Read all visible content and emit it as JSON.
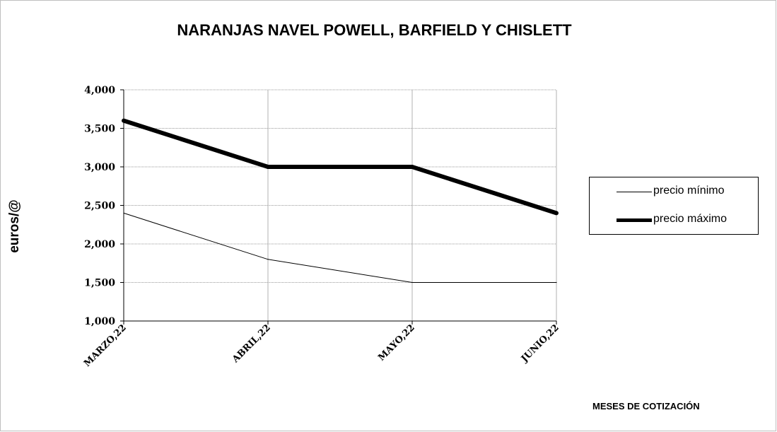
{
  "chart_data": {
    "type": "line",
    "title": "NARANJAS  NAVEL POWELL, BARFIELD Y CHISLETT",
    "ylabel": "euros/@",
    "xlabel": "MESES DE COTIZACIÓN",
    "categories": [
      "MARZO,22",
      "ABRIL,22",
      "MAYO,22",
      "JUNIO,22"
    ],
    "ylim": [
      1.0,
      4.0
    ],
    "yticks": [
      1.0,
      1.5,
      2.0,
      2.5,
      3.0,
      3.5,
      4.0
    ],
    "ytick_labels": [
      "1,000",
      "1,500",
      "2,000",
      "2,500",
      "3,000",
      "3,500",
      "4,000"
    ],
    "grid": true,
    "legend_position": "right",
    "series": [
      {
        "name": "precio mínimo",
        "values": [
          2.4,
          1.8,
          1.5,
          1.5
        ],
        "color": "#000000",
        "style": "thin"
      },
      {
        "name": "precio máximo",
        "values": [
          3.6,
          3.0,
          3.0,
          2.4
        ],
        "color": "#000000",
        "style": "thick"
      }
    ]
  }
}
